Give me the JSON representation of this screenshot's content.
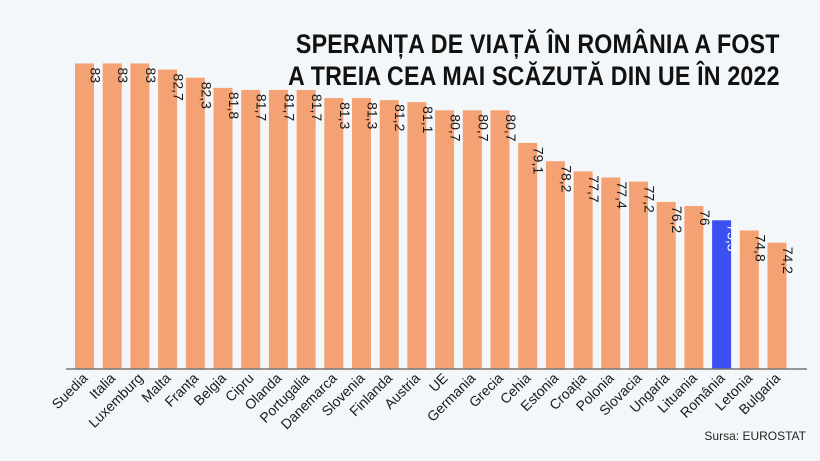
{
  "chart_data": {
    "type": "bar",
    "title_lines": [
      "SPERANȚA DE VIAȚĂ ÎN ROMÂNIA A FOST",
      "A TREIA CEA MAI SCĂZUTĂ DIN UE ÎN 2022"
    ],
    "source": "Sursa: EUROSTAT",
    "categories": [
      "Suedia",
      "Italia",
      "Luxemburg",
      "Malta",
      "Franța",
      "Belgia",
      "Cipru",
      "Olanda",
      "Portugalia",
      "Danemarca",
      "Slovenia",
      "Finlanda",
      "Austria",
      "UE",
      "Germania",
      "Grecia",
      "Cehia",
      "Estonia",
      "Croația",
      "Polonia",
      "Slovacia",
      "Ungaria",
      "Lituania",
      "România",
      "Letonia",
      "Bulgaria"
    ],
    "values": [
      83,
      83,
      83,
      82.7,
      82.3,
      81.8,
      81.7,
      81.7,
      81.7,
      81.3,
      81.3,
      81.2,
      81.1,
      80.7,
      80.7,
      80.7,
      79.1,
      78.2,
      77.7,
      77.4,
      77.2,
      76.2,
      76,
      75.3,
      74.8,
      74.2
    ],
    "value_labels": [
      "83",
      "83",
      "83",
      "82,7",
      "82,3",
      "81,8",
      "81,7",
      "81,7",
      "81,7",
      "81,3",
      "81,3",
      "81,2",
      "81,1",
      "80,7",
      "80,7",
      "80,7",
      "79,1",
      "78,2",
      "77,7",
      "77,4",
      "77,2",
      "76,2",
      "76",
      "75,3",
      "74,8",
      "74,2"
    ],
    "highlight": "România",
    "ylim": [
      68,
      83
    ],
    "grid": false,
    "colors": {
      "bar": "#f4a173",
      "highlight": "#3c4ff0",
      "label": "#1a1a1a",
      "highlight_label": "#ffffff"
    }
  }
}
